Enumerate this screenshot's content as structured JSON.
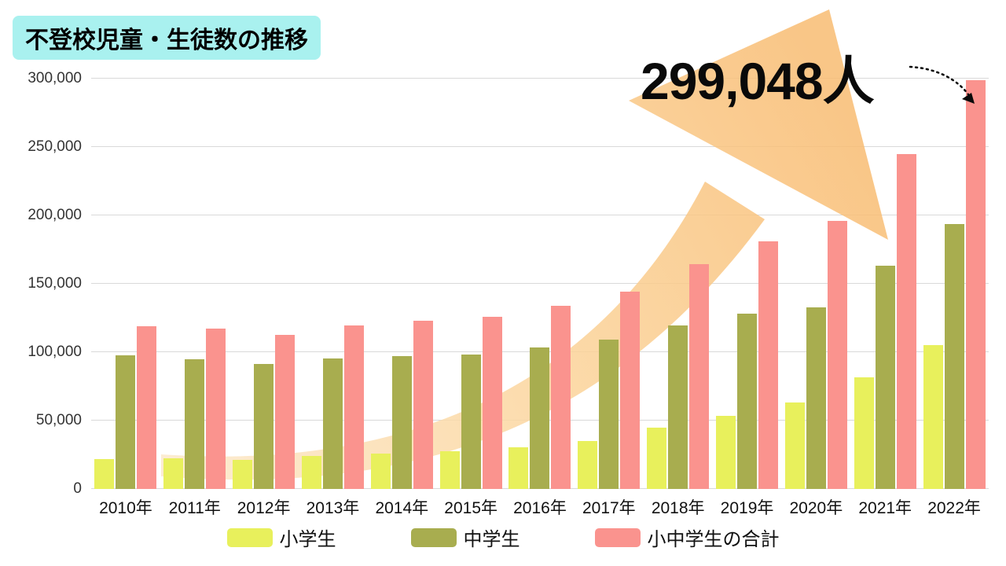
{
  "title": "不登校児童・生徒数の推移",
  "annotation": {
    "label": "299,048人"
  },
  "colors": {
    "title_highlight": "#a9f1ef",
    "grid": "#d9d9d9",
    "background": "#ffffff",
    "arrow_gradient": [
      "#fce9cb",
      "#fbd49b",
      "#f8bc72"
    ],
    "annotation_text": "#0a0a0a"
  },
  "chart_data": {
    "type": "bar",
    "title": "不登校児童・生徒数の推移",
    "categories": [
      "2010年",
      "2011年",
      "2012年",
      "2013年",
      "2014年",
      "2015年",
      "2016年",
      "2017年",
      "2018年",
      "2019年",
      "2020年",
      "2021年",
      "2022年"
    ],
    "series": [
      {
        "name": "小学生",
        "color": "#e8f05c",
        "values": [
          21675,
          22622,
          21243,
          24175,
          25864,
          27583,
          30448,
          35032,
          44841,
          53350,
          63350,
          81498,
          105112
        ]
      },
      {
        "name": "中学生",
        "color": "#a8ad4f",
        "values": [
          97428,
          94836,
          91446,
          95442,
          97033,
          98408,
          103235,
          108999,
          119687,
          127922,
          132777,
          163442,
          193936
        ]
      },
      {
        "name": "小中学生の合計",
        "color": "#fa938e",
        "values": [
          119103,
          117458,
          112689,
          119617,
          122897,
          125991,
          133683,
          144031,
          164528,
          181272,
          196127,
          244940,
          299048
        ]
      }
    ],
    "ylim": [
      0,
      300000
    ],
    "yticks": [
      0,
      50000,
      100000,
      150000,
      200000,
      250000,
      300000
    ],
    "grid": true,
    "legend_position": "bottom"
  }
}
